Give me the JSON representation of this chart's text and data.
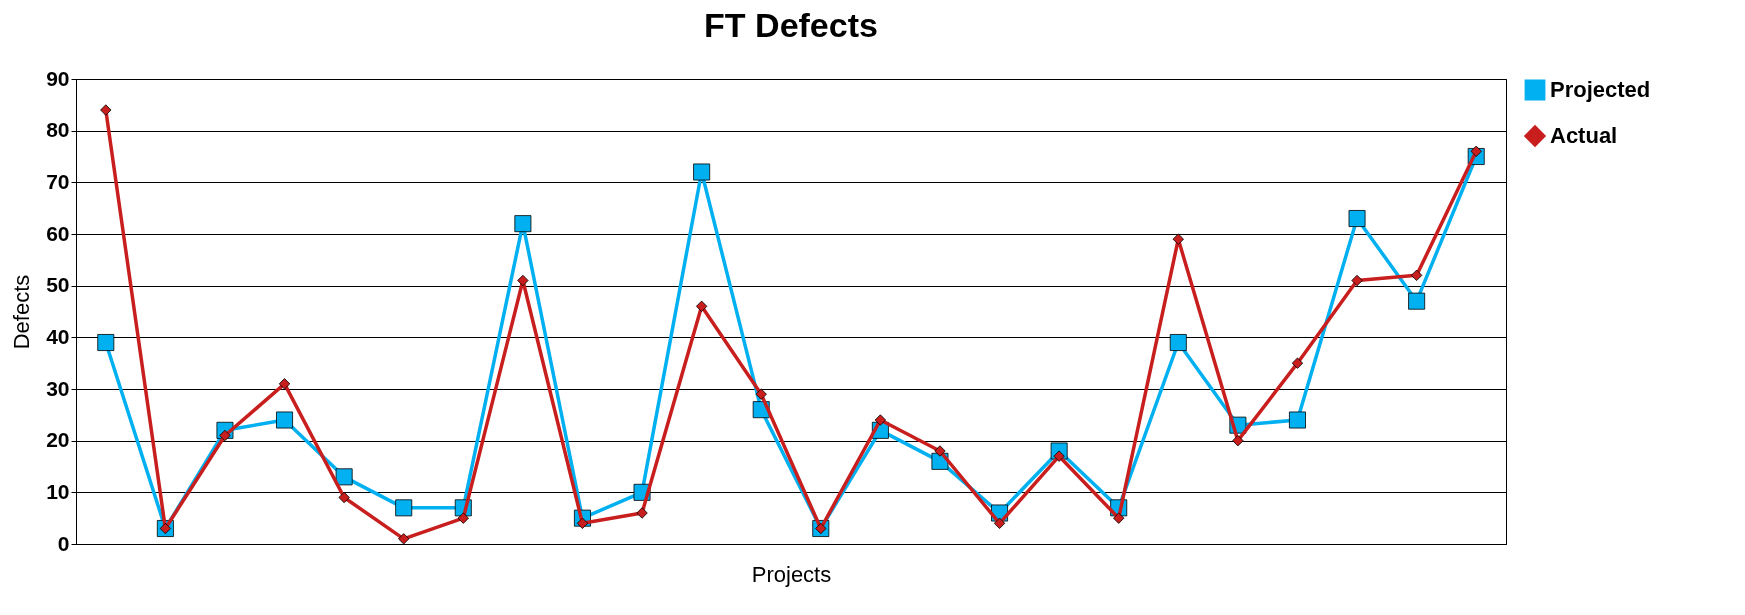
{
  "chart_data": {
    "type": "line",
    "title": "FT Defects",
    "xlabel": "Projects",
    "ylabel": "Defects",
    "categories": [
      null,
      null,
      null,
      null,
      null,
      null,
      null,
      null,
      null,
      null,
      null,
      null,
      null,
      null,
      null,
      null,
      null,
      null,
      null,
      null,
      null,
      null,
      null,
      null
    ],
    "series": [
      {
        "name": "Projected",
        "color": "#00b0f0",
        "marker": "square",
        "values": [
          39,
          3,
          22,
          24,
          13,
          7,
          7,
          62,
          5,
          10,
          72,
          26,
          3,
          22,
          16,
          6,
          18,
          7,
          39,
          23,
          24,
          63,
          47,
          75
        ]
      },
      {
        "name": "Actual",
        "color": "#c81e1e",
        "marker": "diamond",
        "values": [
          84,
          3,
          21,
          31,
          9,
          1,
          5,
          51,
          4,
          6,
          46,
          29,
          3,
          24,
          18,
          4,
          17,
          5,
          59,
          20,
          35,
          51,
          52,
          76
        ]
      }
    ],
    "ylim": [
      0,
      90
    ],
    "yticks": [
      0,
      10,
      20,
      30,
      40,
      50,
      60,
      70,
      80,
      90
    ],
    "grid": "y",
    "legend": "right",
    "tick_labels": "y",
    "line_style": "solid"
  }
}
